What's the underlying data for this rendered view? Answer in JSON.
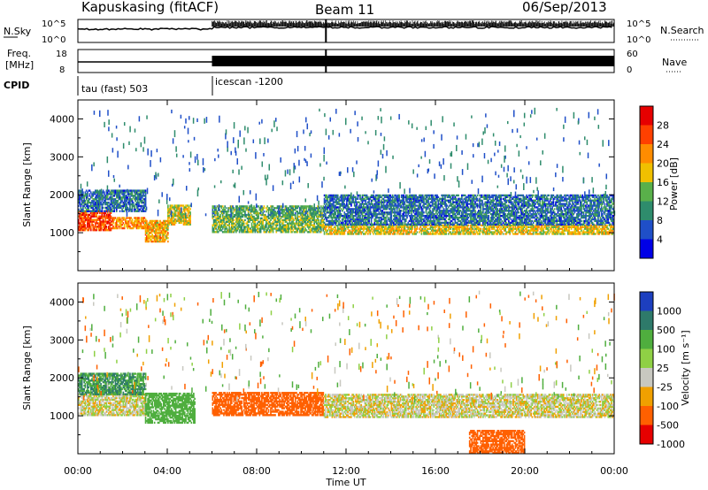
{
  "header": {
    "station": "Kapuskasing (fitACF)",
    "beam": "Beam 11",
    "date": "06/Sep/2013"
  },
  "top_panels": {
    "nsky": {
      "label": "N.Sky",
      "ticks": [
        "10^5",
        "10^0"
      ],
      "right_ticks": [
        "10^5",
        "10^0"
      ],
      "right_label": "N.Search"
    },
    "freq": {
      "label_line1": "Freq.",
      "label_line2": "[MHz]",
      "ticks": [
        18,
        8
      ],
      "right_ticks": [
        60,
        0
      ],
      "right_label": "Nave"
    },
    "cpid": {
      "label": "CPID",
      "segments": [
        {
          "name": "tau (fast) 503",
          "start_h": 0
        },
        {
          "name": "icescan -1200",
          "start_h": 6
        }
      ]
    }
  },
  "chart_data": [
    {
      "type": "heatmap",
      "panel": "power",
      "ylabel": "Slant Range [km]",
      "ylim": [
        0,
        4500
      ],
      "yticks": [
        1000,
        2000,
        3000,
        4000
      ],
      "xlim": [
        0,
        24
      ],
      "colorbar": {
        "label": "Power [dB]",
        "ticks": [
          4,
          8,
          12,
          16,
          20,
          24,
          28
        ],
        "range": [
          0,
          32
        ],
        "colors": [
          "#0000e6",
          "#1f4fc8",
          "#2e8c6c",
          "#59b04a",
          "#f0c000",
          "#ff8c00",
          "#ff4000",
          "#e60000"
        ]
      },
      "bands": [
        {
          "t0": 0.0,
          "t1": 1.5,
          "r0": 1050,
          "r1": 1550,
          "value": 26
        },
        {
          "t0": 1.5,
          "t1": 3.0,
          "r0": 1100,
          "r1": 1400,
          "value": 22
        },
        {
          "t0": 0.0,
          "t1": 3.0,
          "r0": 1550,
          "r1": 2100,
          "value": 8
        },
        {
          "t0": 3.0,
          "t1": 4.0,
          "r0": 750,
          "r1": 1300,
          "value": 20
        },
        {
          "t0": 4.0,
          "t1": 5.0,
          "r0": 1200,
          "r1": 1700,
          "value": 18
        },
        {
          "t0": 6.0,
          "t1": 11.0,
          "r0": 1000,
          "r1": 1450,
          "value": 14
        },
        {
          "t0": 11.0,
          "t1": 24.0,
          "r0": 950,
          "r1": 1200,
          "value": 18
        },
        {
          "t0": 11.0,
          "t1": 24.0,
          "r0": 1200,
          "r1": 2000,
          "value": 8
        },
        {
          "t0": 6.0,
          "t1": 11.0,
          "r0": 1450,
          "r1": 1700,
          "value": 12
        }
      ]
    },
    {
      "type": "heatmap",
      "panel": "velocity",
      "ylabel": "Slant Range [km]",
      "ylim": [
        0,
        4500
      ],
      "yticks": [
        1000,
        2000,
        3000,
        4000
      ],
      "xlim": [
        0,
        24
      ],
      "xticks": [
        "00:00",
        "04:00",
        "08:00",
        "12:00",
        "16:00",
        "20:00",
        "00:00"
      ],
      "xlabel": "Time UT",
      "colorbar": {
        "label": "Velocity [m s⁻¹]",
        "ticks": [
          1000,
          500,
          100,
          25,
          -25,
          -100,
          -500,
          -1000
        ],
        "colors": [
          "#1d3fbf",
          "#2e7a6a",
          "#4fae3e",
          "#8fd045",
          "#c8c8c0",
          "#f0a000",
          "#ff6000",
          "#e60000"
        ]
      },
      "bands": [
        {
          "t0": 0.0,
          "t1": 3.0,
          "r0": 1000,
          "r1": 1550,
          "value": 0
        },
        {
          "t0": 0.0,
          "t1": 3.0,
          "r0": 1550,
          "r1": 2100,
          "value": 300
        },
        {
          "t0": 3.0,
          "t1": 5.2,
          "r0": 800,
          "r1": 1600,
          "value": 200
        },
        {
          "t0": 6.0,
          "t1": 11.0,
          "r0": 1000,
          "r1": 1600,
          "value": -200
        },
        {
          "t0": 11.0,
          "t1": 24.0,
          "r0": 950,
          "r1": 1550,
          "value": 0
        },
        {
          "t0": 17.5,
          "t1": 20.0,
          "r0": 0,
          "r1": 600,
          "value": -300
        }
      ]
    }
  ]
}
